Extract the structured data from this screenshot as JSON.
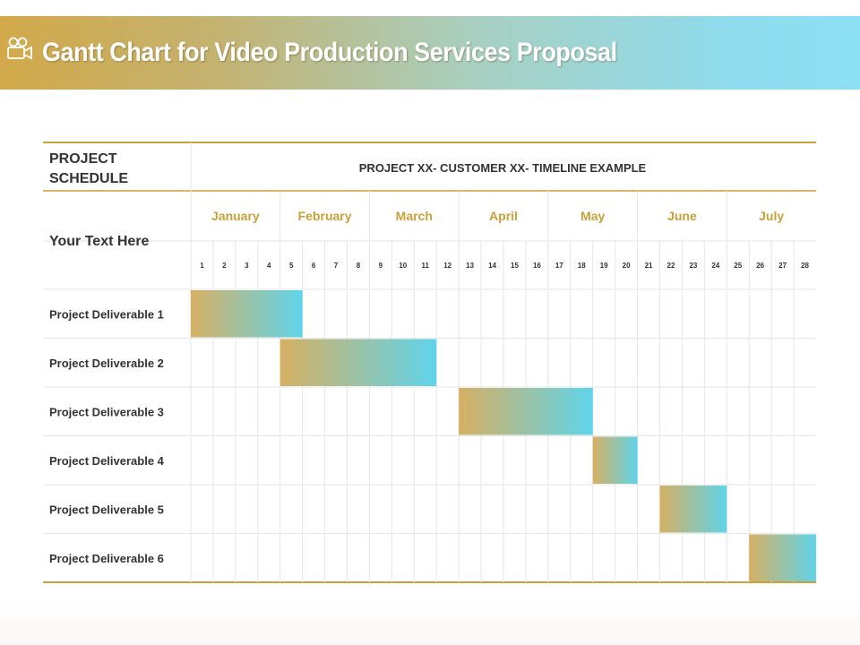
{
  "title": "Gantt Chart for Video Production Services Proposal",
  "icons": {
    "title": "video-camera-icon"
  },
  "colors": {
    "gantt_start": "#d6b063",
    "gantt_end": "#5fd4ea",
    "month_label": "#c9a13a",
    "rule": "#c9a13a",
    "grid": "#e6e6e6"
  },
  "chart_data": {
    "type": "bar",
    "header_left": "PROJECT SCHEDULE",
    "header_right": "PROJECT XX- CUSTOMER XX- TIMELINE EXAMPLE",
    "subheader_left": "Your Text Here",
    "months": [
      {
        "label": "January",
        "start": 1,
        "end": 4
      },
      {
        "label": "February",
        "start": 5,
        "end": 8
      },
      {
        "label": "March",
        "start": 9,
        "end": 12
      },
      {
        "label": "April",
        "start": 13,
        "end": 16
      },
      {
        "label": "May",
        "start": 17,
        "end": 20
      },
      {
        "label": "June",
        "start": 21,
        "end": 24
      },
      {
        "label": "July",
        "start": 25,
        "end": 28
      }
    ],
    "periods": [
      1,
      2,
      3,
      4,
      5,
      6,
      7,
      8,
      9,
      10,
      11,
      12,
      13,
      14,
      15,
      16,
      17,
      18,
      19,
      20,
      21,
      22,
      23,
      24,
      25,
      26,
      27,
      28
    ],
    "tasks": [
      {
        "name": "Project Deliverable 1",
        "start": 1,
        "end": 5
      },
      {
        "name": "Project Deliverable 2",
        "start": 5,
        "end": 11
      },
      {
        "name": "Project Deliverable 3",
        "start": 13,
        "end": 18
      },
      {
        "name": "Project Deliverable 4",
        "start": 19,
        "end": 20
      },
      {
        "name": "Project Deliverable 5",
        "start": 22,
        "end": 24
      },
      {
        "name": "Project Deliverable 6",
        "start": 26,
        "end": 28
      }
    ]
  }
}
